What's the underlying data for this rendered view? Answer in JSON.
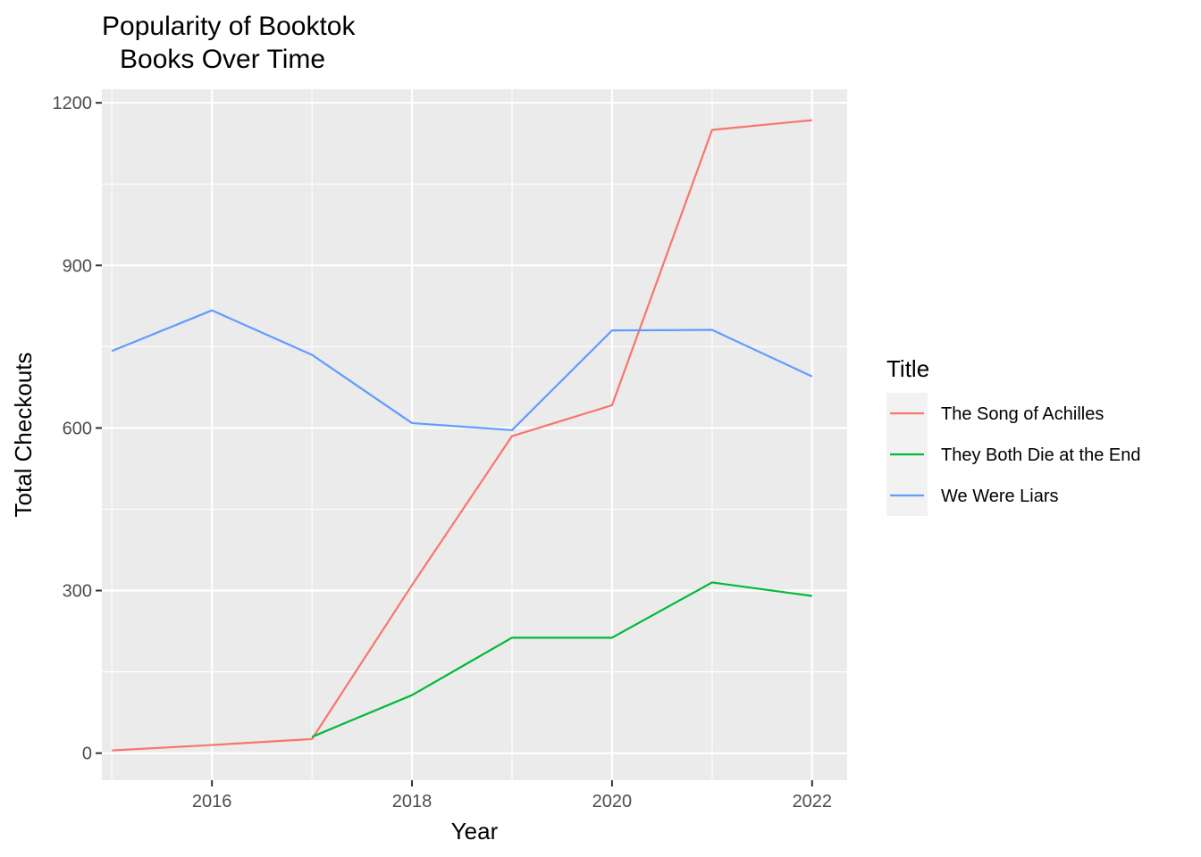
{
  "chart_data": {
    "type": "line",
    "title_lines": [
      "Popularity of Booktok",
      "Books Over Time"
    ],
    "xlabel": "Year",
    "ylabel": "Total Checkouts",
    "xlim": [
      2014.9,
      2022.35
    ],
    "ylim": [
      -50,
      1225
    ],
    "x_ticks": [
      2016,
      2018,
      2020,
      2022
    ],
    "y_ticks": [
      0,
      300,
      600,
      900,
      1200
    ],
    "grid": true,
    "legend": {
      "title": "Title",
      "position": "right"
    },
    "series": [
      {
        "name": "The Song of Achilles",
        "color": "#F8766D",
        "x": [
          2015,
          2016,
          2017,
          2018,
          2019,
          2020,
          2021,
          2022
        ],
        "y": [
          5,
          15,
          26,
          310,
          585,
          642,
          1150,
          1168
        ]
      },
      {
        "name": "They Both Die at the End",
        "color": "#00BA38",
        "x": [
          2017,
          2018,
          2019,
          2020,
          2021,
          2022
        ],
        "y": [
          30,
          107,
          213,
          213,
          315,
          290
        ]
      },
      {
        "name": "We Were Liars",
        "color": "#619CFF",
        "x": [
          2015,
          2016,
          2017,
          2018,
          2019,
          2020,
          2021,
          2022
        ],
        "y": [
          742,
          817,
          735,
          609,
          596,
          780,
          781,
          695
        ]
      }
    ]
  }
}
